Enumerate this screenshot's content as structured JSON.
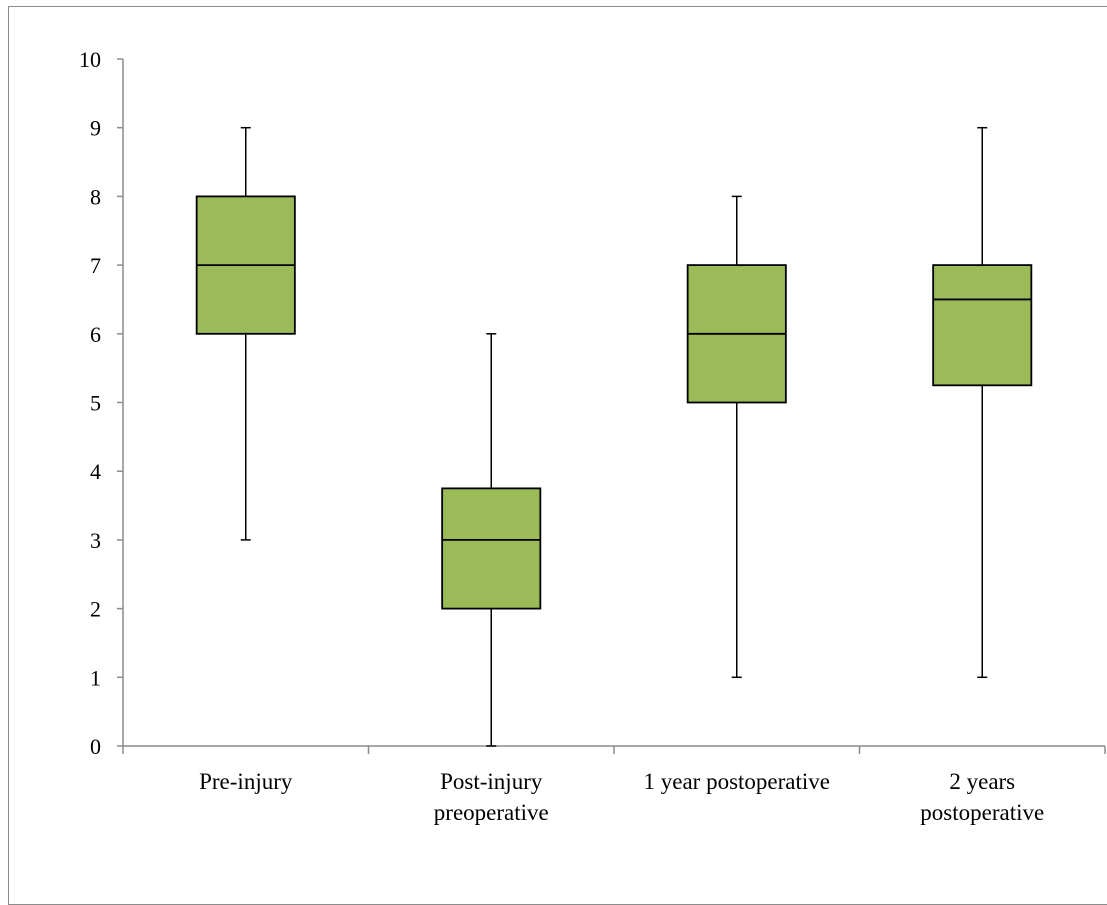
{
  "chart_data": {
    "type": "boxplot",
    "title": "",
    "xlabel": "",
    "ylabel": "",
    "ylim": [
      0,
      10
    ],
    "yticks": [
      0,
      1,
      2,
      3,
      4,
      5,
      6,
      7,
      8,
      9,
      10
    ],
    "grid": false,
    "legend": "none",
    "categories": [
      [
        "Pre-injury"
      ],
      [
        "Post-injury",
        "preoperative"
      ],
      [
        "1 year postoperative"
      ],
      [
        "2 years",
        "postoperative"
      ]
    ],
    "boxes": [
      {
        "min": 3,
        "q1": 6,
        "median": 7,
        "q3": 8,
        "max": 9
      },
      {
        "min": 0,
        "q1": 2,
        "median": 3,
        "q3": 3.75,
        "max": 6
      },
      {
        "min": 1,
        "q1": 5,
        "median": 6,
        "q3": 7,
        "max": 8
      },
      {
        "min": 1,
        "q1": 5.25,
        "median": 6.5,
        "q3": 7,
        "max": 9
      }
    ],
    "colors": {
      "box_fill": "#9bbb59",
      "box_stroke": "#000000",
      "axis": "#8c8c8c"
    }
  }
}
